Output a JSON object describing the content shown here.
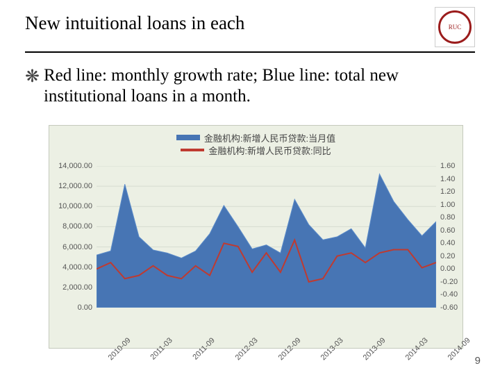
{
  "page_number": "9",
  "title": "New intuitional loans in each",
  "bullet": "Red line: monthly growth rate; Blue line: total new institutional loans in a month.",
  "logo_text": "RUC",
  "legend": {
    "series1": {
      "label": "金融机构:新增人民币贷款:当月值",
      "color": "#4775b4"
    },
    "series2": {
      "label": "金融机构:新增人民币贷款:同比",
      "color": "#bf3a30"
    }
  },
  "chart": {
    "background": "#ecf0e4",
    "plot_bg": "#ecf0e4",
    "grid_color": "#d6dbcf",
    "area_fill": "#4775b4",
    "area_stroke": "#5b8bc9",
    "line_color": "#bf3a30",
    "x_categories": [
      "2010-09",
      "2010-11",
      "2011-01",
      "2011-03",
      "2011-05",
      "2011-07",
      "2011-09",
      "2011-11",
      "2012-01",
      "2012-03",
      "2012-05",
      "2012-07",
      "2012-09",
      "2012-11",
      "2013-01",
      "2013-03",
      "2013-05",
      "2013-07",
      "2013-09",
      "2013-11",
      "2014-01",
      "2014-03",
      "2014-05",
      "2014-07",
      "2014-09"
    ],
    "x_tick_labels": [
      "2010-09",
      "2011-03",
      "2011-09",
      "2012-03",
      "2012-09",
      "2013-03",
      "2013-09",
      "2014-03",
      "2014-09"
    ],
    "left_axis": {
      "min": 0,
      "max": 14000,
      "step": 2000,
      "format": "fixed2"
    },
    "right_axis": {
      "min": -0.6,
      "max": 1.6,
      "step": 0.2,
      "format": "fixed2"
    },
    "area_values": [
      5200,
      5600,
      12200,
      7000,
      5700,
      5400,
      4900,
      5600,
      7300,
      10100,
      8000,
      5800,
      6200,
      5400,
      10700,
      8200,
      6700,
      7000,
      7800,
      5900,
      13200,
      10500,
      8700,
      7100,
      8500
    ],
    "line_values": [
      0.0,
      0.1,
      -0.15,
      -0.1,
      0.05,
      -0.1,
      -0.15,
      0.05,
      -0.1,
      0.4,
      0.35,
      -0.05,
      0.25,
      -0.05,
      0.45,
      -0.2,
      -0.15,
      0.2,
      0.25,
      0.1,
      0.25,
      0.3,
      0.3,
      0.02,
      0.1
    ],
    "axis_font_size": 11,
    "legend_font_size": 13
  }
}
